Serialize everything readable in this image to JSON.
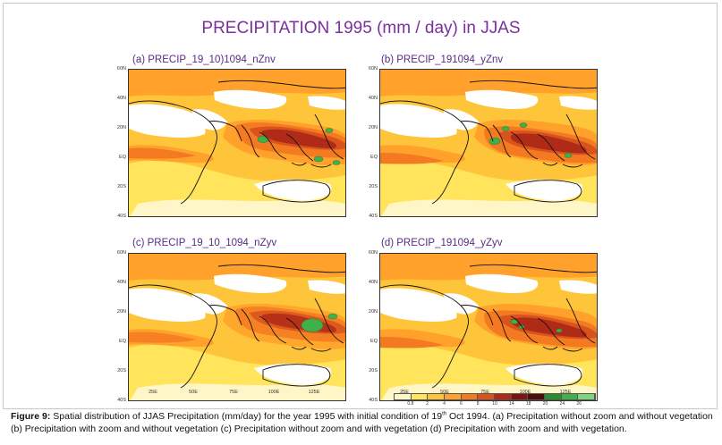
{
  "title": "PRECIPITATION 1995 (mm / day) in JJAS",
  "panels": [
    {
      "id": "a",
      "label": "(a)  PRECIP_19_10)1094_nZnv"
    },
    {
      "id": "b",
      "label": "(b)  PRECIP_191094_yZnv"
    },
    {
      "id": "c",
      "label": "(c)  PRECIP_19_10_1094_nZyv"
    },
    {
      "id": "d",
      "label": "(d)  PRECIP_191094_yZyv"
    }
  ],
  "lat_labels": [
    "60N",
    "40N",
    "20N",
    "EQ",
    "20S",
    "40S"
  ],
  "lon_labels": [
    "25E",
    "50E",
    "75E",
    "100E",
    "125E"
  ],
  "colorbar": {
    "labels": [
      "0.8",
      "2",
      "4",
      "6",
      "8",
      "10",
      "14",
      "18",
      "20",
      "24",
      "26"
    ],
    "colors": [
      "#fff6c8",
      "#ffe45c",
      "#ffc53a",
      "#ffa12a",
      "#f47a22",
      "#d8531d",
      "#b02a18",
      "#7c1410",
      "#4e0b08",
      "#2e8b2e",
      "#3fb04a",
      "#7fd67f"
    ]
  },
  "caption": {
    "figure_label": "Figure 9:",
    "text_before_sup": " Spatial distribution of JJAS Precipitation (mm/day) for the year 1995 with initial condition of 19",
    "sup": "th",
    "text_after_sup": " Oct 1994. (a) Precipitation without zoom and without vegetation (b) Precipitation with zoom and without vegetation (c) Precipitation without zoom and with vegetation (d) Precipitation with zoom and with vegetation."
  }
}
